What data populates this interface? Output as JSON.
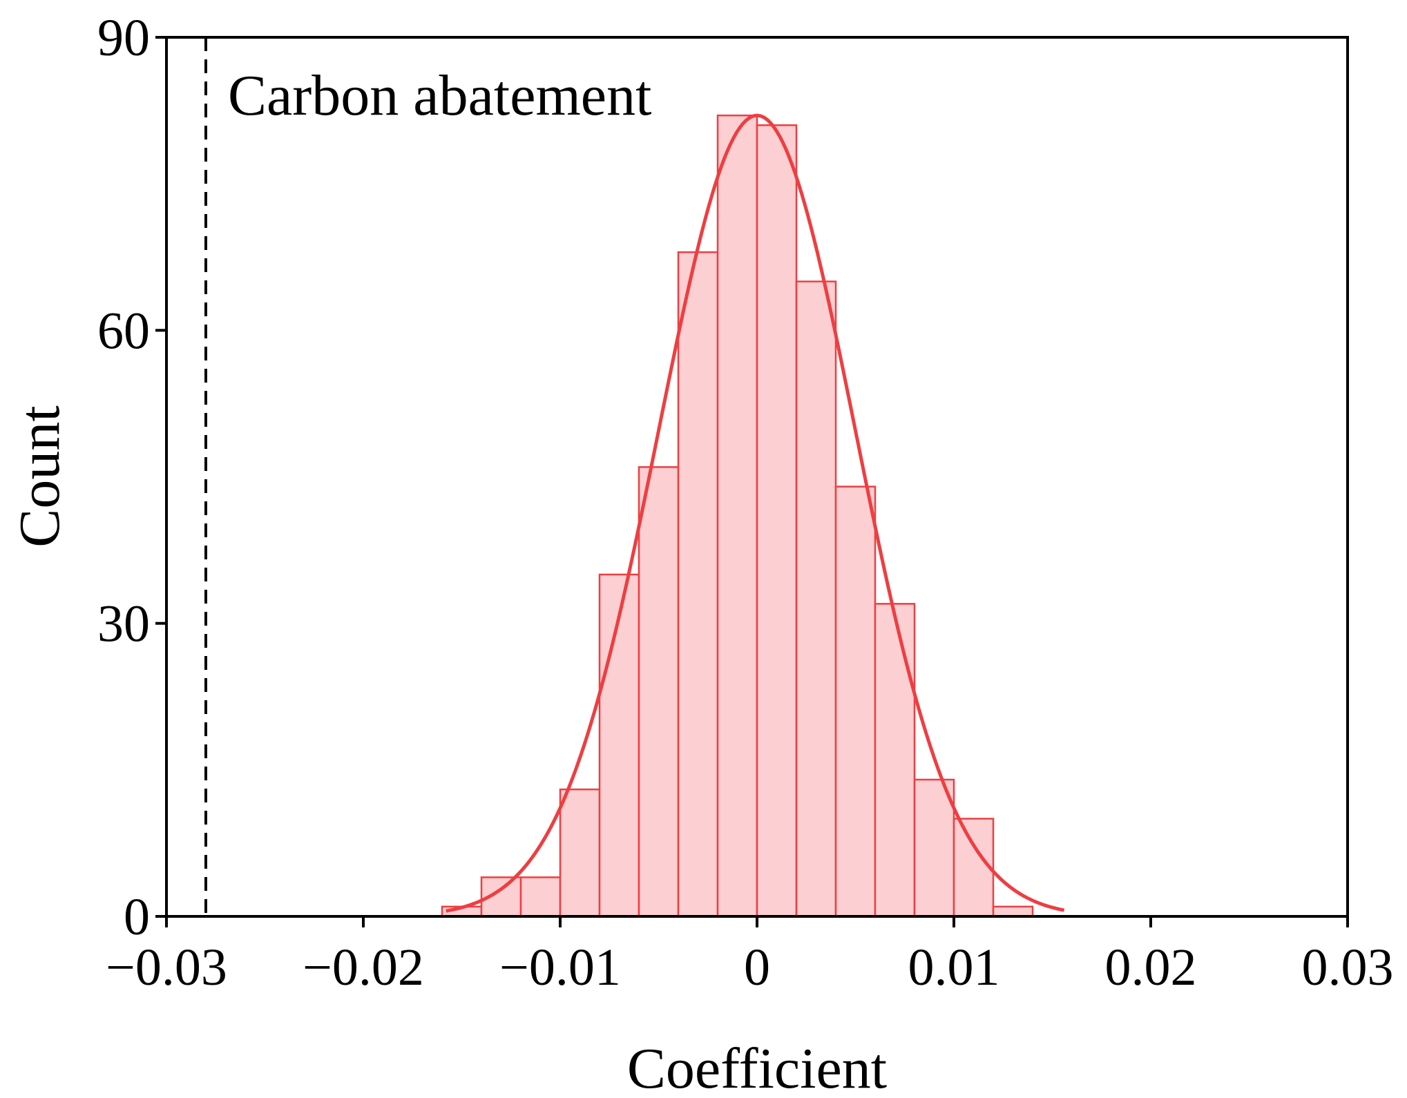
{
  "chart_data": {
    "type": "bar",
    "title": "",
    "xlabel": "Coefficient",
    "ylabel": "Count",
    "xlim": [
      -0.03,
      0.03
    ],
    "ylim": [
      0,
      90
    ],
    "x_ticks": [
      -0.03,
      -0.02,
      -0.01,
      0,
      0.01,
      0.02,
      0.03
    ],
    "x_tick_labels": [
      "−0.03",
      "−0.02",
      "−0.01",
      "0",
      "0.01",
      "0.02",
      "0.03"
    ],
    "y_ticks": [
      0,
      30,
      60,
      90
    ],
    "y_tick_labels": [
      "0",
      "30",
      "60",
      "90"
    ],
    "bin_width": 0.002,
    "bins": [
      {
        "left": -0.016,
        "count": 1
      },
      {
        "left": -0.014,
        "count": 4
      },
      {
        "left": -0.012,
        "count": 4
      },
      {
        "left": -0.01,
        "count": 13
      },
      {
        "left": -0.008,
        "count": 35
      },
      {
        "left": -0.006,
        "count": 46
      },
      {
        "left": -0.004,
        "count": 68
      },
      {
        "left": -0.002,
        "count": 82
      },
      {
        "left": 0.0,
        "count": 81
      },
      {
        "left": 0.002,
        "count": 65
      },
      {
        "left": 0.004,
        "count": 44
      },
      {
        "left": 0.006,
        "count": 32
      },
      {
        "left": 0.008,
        "count": 14
      },
      {
        "left": 0.01,
        "count": 10
      },
      {
        "left": 0.012,
        "count": 1
      }
    ],
    "fit_curve": {
      "type": "normal",
      "mean": 0.0,
      "sd": 0.005,
      "peak": 82,
      "x_range": [
        -0.0158,
        0.0156
      ]
    },
    "reference_line": {
      "x": -0.028,
      "style": "dashed",
      "label": "Carbon abatement"
    },
    "grid": false,
    "legend": "none",
    "colors": {
      "bar_fill": "#fccfd2",
      "bar_edge": "#ee3e41",
      "curve": "#ee3e41",
      "reference_line": "#000000"
    }
  }
}
